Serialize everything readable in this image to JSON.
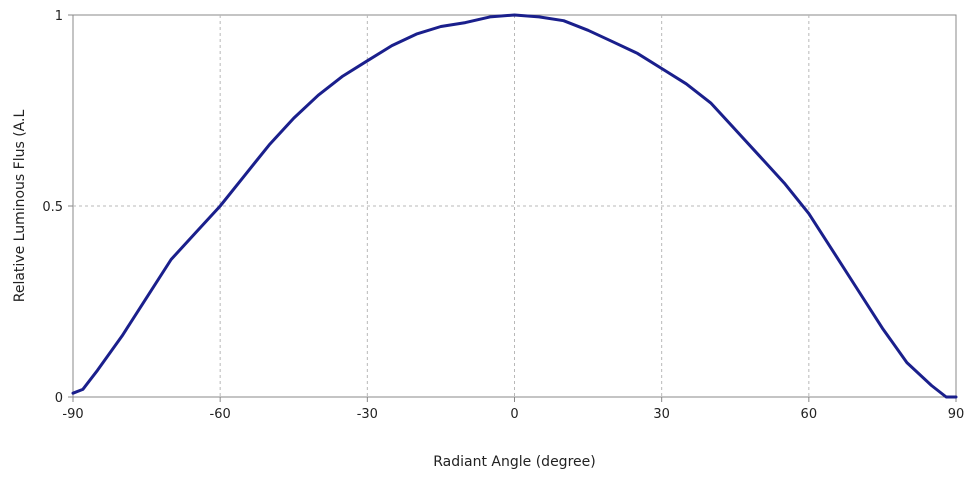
{
  "chart_data": {
    "type": "line",
    "title": "",
    "xlabel": "Radiant Angle (degree)",
    "ylabel": "Relative Luminous Flus (A.L",
    "xlim": [
      -90,
      90
    ],
    "ylim": [
      0,
      1
    ],
    "xticks": [
      -90,
      -60,
      -30,
      0,
      30,
      60,
      90
    ],
    "yticks": [
      0,
      0.5,
      1
    ],
    "xtick_labels": [
      "-90",
      "-60",
      "-30",
      "0",
      "30",
      "60",
      "90"
    ],
    "ytick_labels": [
      "0",
      "0.5",
      "1"
    ],
    "grid": true,
    "line_color": "#1a1f8c",
    "series": [
      {
        "x": [
          -90,
          -88,
          -85,
          -80,
          -75,
          -70,
          -65,
          -60,
          -55,
          -50,
          -45,
          -40,
          -35,
          -30,
          -25,
          -20,
          -15,
          -10,
          -5,
          0,
          5,
          10,
          15,
          20,
          25,
          30,
          35,
          40,
          45,
          50,
          55,
          60,
          65,
          70,
          75,
          80,
          85,
          88,
          90
        ],
        "values": [
          0.01,
          0.02,
          0.07,
          0.16,
          0.26,
          0.36,
          0.43,
          0.5,
          0.58,
          0.66,
          0.73,
          0.79,
          0.84,
          0.88,
          0.92,
          0.95,
          0.97,
          0.98,
          0.995,
          1.0,
          0.995,
          0.985,
          0.96,
          0.93,
          0.9,
          0.86,
          0.82,
          0.77,
          0.7,
          0.63,
          0.56,
          0.48,
          0.38,
          0.28,
          0.18,
          0.09,
          0.03,
          0.0,
          0.0
        ]
      }
    ]
  }
}
